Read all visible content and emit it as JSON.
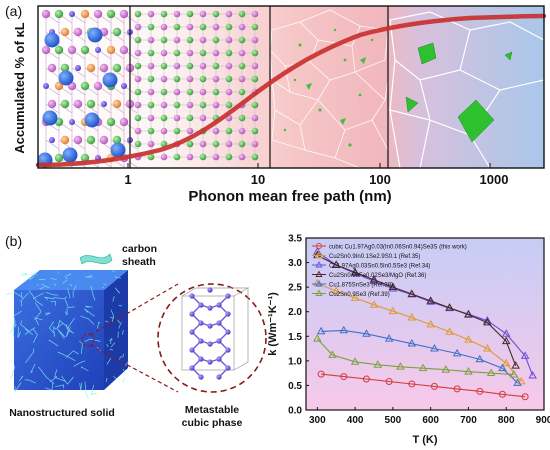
{
  "panel_a": {
    "label": "(a)",
    "ylabel": "Accumulated % of κL",
    "xlabel": "Phonon mean free path (nm)",
    "ticks": [
      "1",
      "10",
      "100",
      "1000"
    ]
  },
  "panel_b": {
    "label": "(b)",
    "carbon_sheath": "carbon\nsheath",
    "nanostructured_solid": "Nanostructured solid",
    "metastable_cubic": "Metastable\ncubic phase"
  },
  "chart_data": {
    "type": "line",
    "xlabel": "T (K)",
    "ylabel": "k (Wm⁻¹K⁻¹)",
    "xlim": [
      270,
      900
    ],
    "ylim": [
      0.0,
      3.5
    ],
    "xticks": [
      300,
      400,
      500,
      600,
      700,
      800,
      900
    ],
    "yticks": [
      0.0,
      0.5,
      1.0,
      1.5,
      2.0,
      2.5,
      3.0,
      3.5
    ],
    "legend_position": "top-left",
    "series": [
      {
        "name": "cubic Cu1.97Ag0.03(In0.06Sn0.94)Se3S (this work)",
        "color": "#d63a3a",
        "marker": "circle",
        "x": [
          310,
          370,
          430,
          490,
          550,
          610,
          670,
          730,
          790,
          850
        ],
        "y": [
          0.73,
          0.68,
          0.63,
          0.58,
          0.53,
          0.48,
          0.43,
          0.38,
          0.32,
          0.27
        ]
      },
      {
        "name": "Cu2Sn0.9In0.1Se2.9S0.1 (Ref.35)",
        "color": "#e09a32",
        "marker": "triangle",
        "x": [
          300,
          350,
          400,
          450,
          500,
          550,
          600,
          650,
          700,
          750,
          800,
          840
        ],
        "y": [
          2.58,
          2.42,
          2.28,
          2.14,
          2.01,
          1.88,
          1.74,
          1.59,
          1.43,
          1.25,
          0.95,
          0.58
        ]
      },
      {
        "name": "Cu1.97Ag0.03Sn0.5In0.5Se3 (Ref.34)",
        "color": "#6a4fd8",
        "marker": "triangle",
        "x": [
          300,
          350,
          400,
          450,
          500,
          550,
          600,
          650,
          700,
          750,
          800,
          850,
          870
        ],
        "y": [
          3.22,
          2.95,
          2.78,
          2.62,
          2.47,
          2.35,
          2.2,
          2.07,
          1.95,
          1.82,
          1.55,
          1.1,
          0.7
        ]
      },
      {
        "name": "Cu2Sn0.98Fe0.02Se3/MgO (Ref.36)",
        "color": "#4a2a2a",
        "marker": "triangle",
        "x": [
          300,
          350,
          400,
          450,
          500,
          550,
          600,
          650,
          700,
          750,
          800,
          825
        ],
        "y": [
          3.15,
          2.95,
          2.8,
          2.65,
          2.5,
          2.36,
          2.22,
          2.08,
          1.94,
          1.78,
          1.4,
          0.9
        ]
      },
      {
        "name": "Cu1.875SnSe3 (Ref.39)",
        "color": "#3e6fc8",
        "marker": "triangle",
        "x": [
          310,
          370,
          430,
          490,
          550,
          610,
          670,
          730,
          790,
          830
        ],
        "y": [
          1.6,
          1.62,
          1.55,
          1.45,
          1.35,
          1.25,
          1.15,
          1.03,
          0.85,
          0.55
        ]
      },
      {
        "name": "Cu2Sn0.9Se3 (Ref.39)",
        "color": "#7aa23a",
        "marker": "triangle",
        "x": [
          300,
          340,
          400,
          460,
          520,
          580,
          640,
          700,
          760,
          820
        ],
        "y": [
          1.45,
          1.12,
          0.98,
          0.92,
          0.88,
          0.85,
          0.82,
          0.78,
          0.75,
          0.72
        ]
      }
    ]
  }
}
